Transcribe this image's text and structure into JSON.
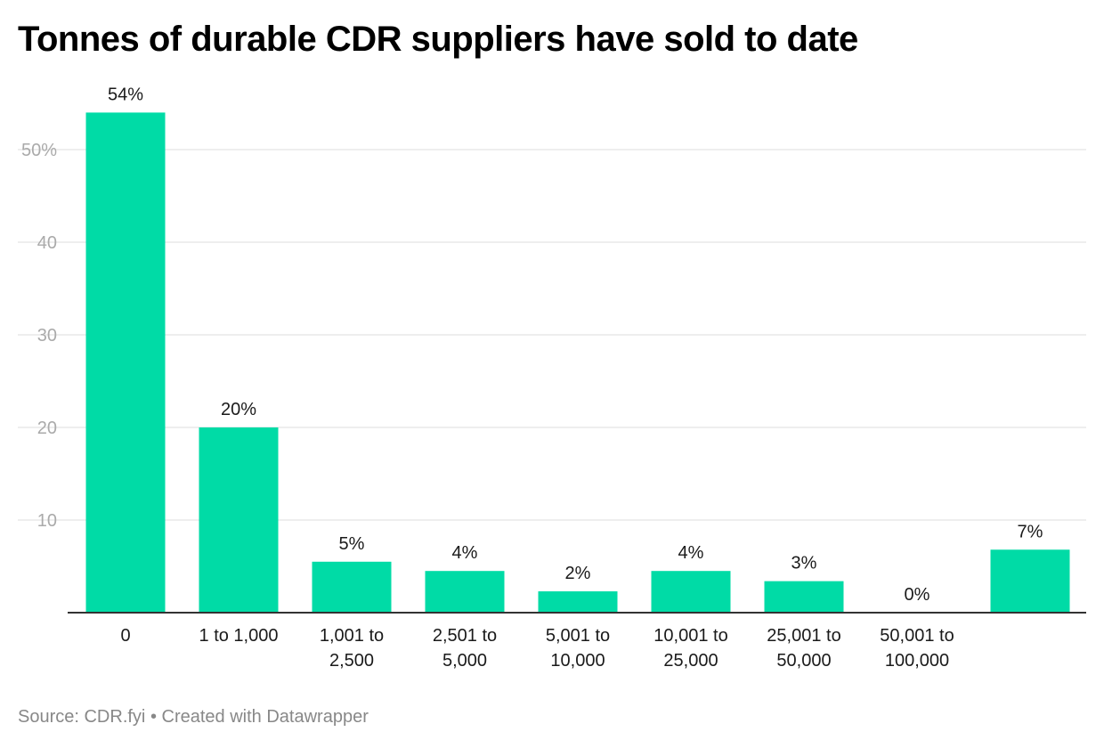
{
  "chart_data": {
    "type": "bar",
    "title": "Tonnes of durable CDR suppliers have sold to date",
    "categories": [
      [
        "0"
      ],
      [
        "1 to 1,000"
      ],
      [
        "1,001 to",
        "2,500"
      ],
      [
        "2,501 to",
        "5,000"
      ],
      [
        "5,001 to",
        "10,000"
      ],
      [
        "10,001 to",
        "25,000"
      ],
      [
        "25,001 to",
        "50,000"
      ],
      [
        "50,001 to",
        "100,000"
      ],
      [
        ""
      ]
    ],
    "values": [
      54,
      20,
      5.5,
      4.5,
      2.3,
      4.5,
      3.4,
      0,
      6.8
    ],
    "data_labels": [
      "54%",
      "20%",
      "5%",
      "4%",
      "2%",
      "4%",
      "3%",
      "0%",
      "7%"
    ],
    "ylim": [
      0,
      50
    ],
    "yticks": [
      10,
      20,
      30,
      40,
      50
    ],
    "ytick_labels": [
      "10",
      "20",
      "30",
      "40",
      "50%"
    ],
    "xlabel": "",
    "ylabel": "",
    "grid": true,
    "bar_color": "#00dba6"
  },
  "footer": {
    "source": "Source: CDR.fyi",
    "separator": "•",
    "credit": "Created with Datawrapper"
  }
}
